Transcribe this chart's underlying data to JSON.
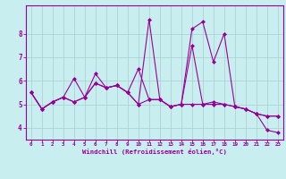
{
  "xlabel": "Windchill (Refroidissement éolien,°C)",
  "ylabel": "",
  "background_color": "#c8eef0",
  "line_color": "#990099",
  "grid_color": "#aacccc",
  "hours": [
    0,
    1,
    2,
    3,
    4,
    5,
    6,
    7,
    8,
    9,
    10,
    11,
    12,
    13,
    14,
    15,
    16,
    17,
    18,
    19,
    20,
    21,
    22,
    23
  ],
  "line1": [
    5.5,
    4.8,
    5.1,
    5.3,
    6.1,
    5.3,
    6.3,
    5.7,
    5.8,
    5.5,
    5.0,
    8.6,
    5.2,
    4.9,
    5.0,
    8.2,
    8.5,
    6.8,
    8.0,
    4.9,
    4.8,
    4.6,
    3.9,
    3.8
  ],
  "line2": [
    5.5,
    4.8,
    5.1,
    5.3,
    5.1,
    5.3,
    5.9,
    5.7,
    5.8,
    5.5,
    6.5,
    5.2,
    5.2,
    4.9,
    5.0,
    7.5,
    5.0,
    5.1,
    5.0,
    4.9,
    4.8,
    4.6,
    4.5,
    4.5
  ],
  "line3": [
    5.5,
    4.8,
    5.1,
    5.3,
    5.1,
    5.3,
    5.9,
    5.7,
    5.8,
    5.5,
    5.0,
    5.2,
    5.2,
    4.9,
    5.0,
    5.0,
    5.0,
    5.0,
    5.0,
    4.9,
    4.8,
    4.6,
    4.5,
    4.5
  ],
  "ylim": [
    3.5,
    9.2
  ],
  "yticks": [
    4,
    5,
    6,
    7,
    8
  ],
  "fig_bg": "#c8eef0"
}
